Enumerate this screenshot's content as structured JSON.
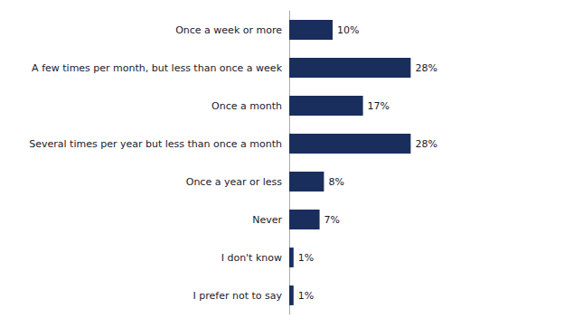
{
  "chart_data": {
    "type": "bar",
    "orientation": "horizontal",
    "categories": [
      "Once a week or more",
      "A few times per month, but less than once a week",
      "Once a month",
      "Several times per year but less than once a month",
      "Once a year or less",
      "Never",
      "I don't know",
      "I prefer not to say"
    ],
    "values": [
      10,
      28,
      17,
      28,
      8,
      7,
      1,
      1
    ],
    "value_labels": [
      "10%",
      "28%",
      "17%",
      "28%",
      "8%",
      "7%",
      "1%",
      "1%"
    ],
    "color": "#1a2e5e",
    "xlim": [
      0,
      55
    ],
    "data_labels": true,
    "tick_labels": "y",
    "grid": false
  }
}
